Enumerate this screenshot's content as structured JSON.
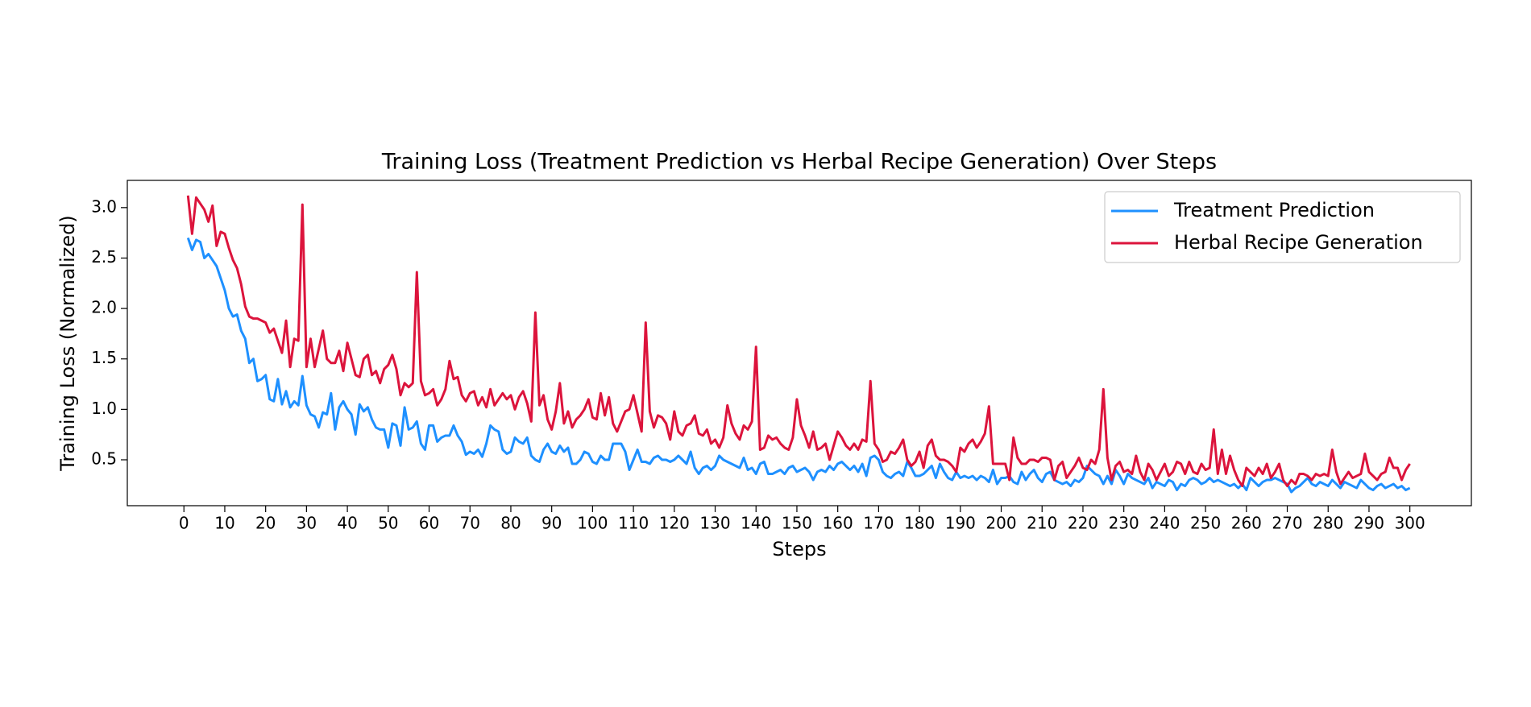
{
  "chart_data": {
    "type": "line",
    "title": "Training Loss (Treatment Prediction vs Herbal Recipe Generation) Over Steps",
    "x_label": "Steps",
    "y_label": "Training Loss (Normalized)",
    "x": [
      1,
      2,
      3,
      4,
      5,
      6,
      7,
      8,
      9,
      10,
      11,
      12,
      13,
      14,
      15,
      16,
      17,
      18,
      19,
      20,
      21,
      22,
      23,
      24,
      25,
      26,
      27,
      28,
      29,
      30,
      31,
      32,
      33,
      34,
      35,
      36,
      37,
      38,
      39,
      40,
      41,
      42,
      43,
      44,
      45,
      46,
      47,
      48,
      49,
      50,
      51,
      52,
      53,
      54,
      55,
      56,
      57,
      58,
      59,
      60,
      61,
      62,
      63,
      64,
      65,
      66,
      67,
      68,
      69,
      70,
      71,
      72,
      73,
      74,
      75,
      76,
      77,
      78,
      79,
      80,
      81,
      82,
      83,
      84,
      85,
      86,
      87,
      88,
      89,
      90,
      91,
      92,
      93,
      94,
      95,
      96,
      97,
      98,
      99,
      100,
      101,
      102,
      103,
      104,
      105,
      106,
      107,
      108,
      109,
      110,
      111,
      112,
      113,
      114,
      115,
      116,
      117,
      118,
      119,
      120,
      121,
      122,
      123,
      124,
      125,
      126,
      127,
      128,
      129,
      130,
      131,
      132,
      133,
      134,
      135,
      136,
      137,
      138,
      139,
      140,
      141,
      142,
      143,
      144,
      145,
      146,
      147,
      148,
      149,
      150,
      151,
      152,
      153,
      154,
      155,
      156,
      157,
      158,
      159,
      160,
      161,
      162,
      163,
      164,
      165,
      166,
      167,
      168,
      169,
      170,
      171,
      172,
      173,
      174,
      175,
      176,
      177,
      178,
      179,
      180,
      181,
      182,
      183,
      184,
      185,
      186,
      187,
      188,
      189,
      190,
      191,
      192,
      193,
      194,
      195,
      196,
      197,
      198,
      199,
      200,
      201,
      202,
      203,
      204,
      205,
      206,
      207,
      208,
      209,
      210,
      211,
      212,
      213,
      214,
      215,
      216,
      217,
      218,
      219,
      220,
      221,
      222,
      223,
      224,
      225,
      226,
      227,
      228,
      229,
      230,
      231,
      232,
      233,
      234,
      235,
      236,
      237,
      238,
      239,
      240,
      241,
      242,
      243,
      244,
      245,
      246,
      247,
      248,
      249,
      250,
      251,
      252,
      253,
      254,
      255,
      256,
      257,
      258,
      259,
      260,
      261,
      262,
      263,
      264,
      265,
      266,
      267,
      268,
      269,
      270,
      271,
      272,
      273,
      274,
      275,
      276,
      277,
      278,
      279,
      280,
      281,
      282,
      283,
      284,
      285,
      286,
      287,
      288,
      289,
      290,
      291,
      292,
      293,
      294,
      295,
      296,
      297,
      298,
      299,
      300
    ],
    "series": [
      {
        "name": "Treatment Prediction",
        "color": "#1e90ff",
        "values": [
          2.7,
          2.58,
          2.68,
          2.66,
          2.5,
          2.54,
          2.48,
          2.42,
          2.3,
          2.18,
          2.0,
          1.92,
          1.94,
          1.78,
          1.7,
          1.46,
          1.5,
          1.28,
          1.3,
          1.34,
          1.1,
          1.08,
          1.3,
          1.05,
          1.18,
          1.02,
          1.08,
          1.04,
          1.33,
          1.04,
          0.95,
          0.93,
          0.82,
          0.97,
          0.95,
          1.16,
          0.8,
          1.02,
          1.08,
          1.0,
          0.95,
          0.75,
          1.05,
          0.98,
          1.02,
          0.9,
          0.82,
          0.8,
          0.8,
          0.62,
          0.86,
          0.84,
          0.64,
          1.02,
          0.8,
          0.82,
          0.88,
          0.66,
          0.6,
          0.84,
          0.84,
          0.68,
          0.72,
          0.74,
          0.74,
          0.84,
          0.74,
          0.68,
          0.55,
          0.58,
          0.56,
          0.6,
          0.53,
          0.66,
          0.84,
          0.8,
          0.78,
          0.6,
          0.56,
          0.58,
          0.72,
          0.68,
          0.66,
          0.72,
          0.54,
          0.5,
          0.48,
          0.6,
          0.66,
          0.58,
          0.56,
          0.64,
          0.58,
          0.62,
          0.46,
          0.46,
          0.5,
          0.58,
          0.56,
          0.48,
          0.46,
          0.54,
          0.5,
          0.5,
          0.66,
          0.66,
          0.66,
          0.58,
          0.4,
          0.5,
          0.6,
          0.48,
          0.48,
          0.46,
          0.52,
          0.54,
          0.5,
          0.5,
          0.48,
          0.5,
          0.54,
          0.5,
          0.46,
          0.58,
          0.42,
          0.36,
          0.42,
          0.44,
          0.4,
          0.44,
          0.54,
          0.5,
          0.48,
          0.46,
          0.44,
          0.42,
          0.52,
          0.4,
          0.42,
          0.36,
          0.46,
          0.48,
          0.36,
          0.36,
          0.38,
          0.4,
          0.36,
          0.42,
          0.44,
          0.38,
          0.4,
          0.42,
          0.38,
          0.3,
          0.38,
          0.4,
          0.38,
          0.44,
          0.4,
          0.46,
          0.48,
          0.44,
          0.4,
          0.44,
          0.38,
          0.46,
          0.34,
          0.52,
          0.54,
          0.5,
          0.38,
          0.34,
          0.32,
          0.36,
          0.38,
          0.34,
          0.48,
          0.42,
          0.34,
          0.34,
          0.36,
          0.4,
          0.44,
          0.32,
          0.46,
          0.38,
          0.32,
          0.3,
          0.38,
          0.32,
          0.34,
          0.32,
          0.34,
          0.3,
          0.34,
          0.32,
          0.28,
          0.4,
          0.26,
          0.32,
          0.32,
          0.34,
          0.28,
          0.26,
          0.38,
          0.3,
          0.36,
          0.4,
          0.32,
          0.28,
          0.36,
          0.38,
          0.3,
          0.28,
          0.26,
          0.28,
          0.24,
          0.3,
          0.28,
          0.32,
          0.44,
          0.4,
          0.36,
          0.34,
          0.26,
          0.34,
          0.26,
          0.4,
          0.34,
          0.26,
          0.36,
          0.32,
          0.3,
          0.28,
          0.26,
          0.32,
          0.22,
          0.28,
          0.26,
          0.24,
          0.3,
          0.28,
          0.2,
          0.26,
          0.24,
          0.3,
          0.32,
          0.3,
          0.26,
          0.28,
          0.32,
          0.28,
          0.3,
          0.28,
          0.26,
          0.24,
          0.26,
          0.22,
          0.26,
          0.2,
          0.32,
          0.28,
          0.24,
          0.28,
          0.3,
          0.3,
          0.32,
          0.3,
          0.28,
          0.26,
          0.18,
          0.22,
          0.24,
          0.28,
          0.32,
          0.26,
          0.24,
          0.28,
          0.26,
          0.24,
          0.3,
          0.26,
          0.22,
          0.28,
          0.26,
          0.24,
          0.22,
          0.3,
          0.26,
          0.22,
          0.2,
          0.24,
          0.26,
          0.22,
          0.24,
          0.26,
          0.22,
          0.24,
          0.2,
          0.22
        ]
      },
      {
        "name": "Herbal Recipe Generation",
        "color": "#dc143c",
        "values": [
          3.12,
          2.74,
          3.1,
          3.04,
          2.98,
          2.86,
          3.02,
          2.62,
          2.76,
          2.74,
          2.6,
          2.48,
          2.4,
          2.24,
          2.02,
          1.92,
          1.9,
          1.9,
          1.88,
          1.86,
          1.76,
          1.8,
          1.68,
          1.56,
          1.88,
          1.42,
          1.7,
          1.68,
          3.03,
          1.42,
          1.7,
          1.42,
          1.6,
          1.78,
          1.5,
          1.46,
          1.46,
          1.58,
          1.38,
          1.66,
          1.5,
          1.34,
          1.32,
          1.5,
          1.54,
          1.34,
          1.38,
          1.26,
          1.4,
          1.44,
          1.54,
          1.4,
          1.14,
          1.26,
          1.22,
          1.26,
          2.36,
          1.28,
          1.14,
          1.16,
          1.2,
          1.04,
          1.1,
          1.2,
          1.48,
          1.3,
          1.32,
          1.14,
          1.08,
          1.16,
          1.18,
          1.04,
          1.12,
          1.02,
          1.2,
          1.04,
          1.1,
          1.16,
          1.1,
          1.14,
          1.0,
          1.12,
          1.18,
          1.06,
          0.88,
          1.96,
          1.04,
          1.14,
          0.9,
          0.8,
          0.98,
          1.26,
          0.86,
          0.98,
          0.82,
          0.9,
          0.94,
          1.0,
          1.1,
          0.92,
          0.9,
          1.16,
          0.94,
          1.12,
          0.86,
          0.78,
          0.88,
          0.98,
          1.0,
          1.14,
          0.96,
          0.78,
          1.86,
          0.98,
          0.82,
          0.94,
          0.92,
          0.86,
          0.7,
          0.98,
          0.78,
          0.74,
          0.84,
          0.86,
          0.94,
          0.76,
          0.74,
          0.8,
          0.66,
          0.7,
          0.62,
          0.72,
          1.04,
          0.86,
          0.76,
          0.7,
          0.84,
          0.8,
          0.88,
          1.62,
          0.6,
          0.62,
          0.74,
          0.7,
          0.72,
          0.66,
          0.62,
          0.6,
          0.72,
          1.1,
          0.84,
          0.74,
          0.62,
          0.78,
          0.6,
          0.62,
          0.66,
          0.5,
          0.64,
          0.78,
          0.72,
          0.64,
          0.6,
          0.66,
          0.6,
          0.7,
          0.68,
          1.28,
          0.66,
          0.6,
          0.48,
          0.5,
          0.58,
          0.56,
          0.62,
          0.7,
          0.5,
          0.44,
          0.48,
          0.58,
          0.42,
          0.64,
          0.7,
          0.54,
          0.5,
          0.5,
          0.48,
          0.44,
          0.38,
          0.62,
          0.58,
          0.66,
          0.7,
          0.62,
          0.68,
          0.76,
          1.03,
          0.46,
          0.46,
          0.46,
          0.46,
          0.3,
          0.72,
          0.52,
          0.46,
          0.46,
          0.5,
          0.5,
          0.48,
          0.52,
          0.52,
          0.5,
          0.3,
          0.44,
          0.48,
          0.32,
          0.38,
          0.44,
          0.52,
          0.42,
          0.4,
          0.5,
          0.46,
          0.6,
          1.2,
          0.52,
          0.3,
          0.44,
          0.48,
          0.38,
          0.4,
          0.36,
          0.54,
          0.38,
          0.3,
          0.46,
          0.4,
          0.3,
          0.38,
          0.46,
          0.34,
          0.38,
          0.48,
          0.46,
          0.36,
          0.48,
          0.38,
          0.36,
          0.46,
          0.4,
          0.42,
          0.8,
          0.36,
          0.6,
          0.36,
          0.54,
          0.4,
          0.3,
          0.24,
          0.42,
          0.38,
          0.34,
          0.42,
          0.36,
          0.46,
          0.32,
          0.38,
          0.46,
          0.3,
          0.24,
          0.3,
          0.26,
          0.36,
          0.36,
          0.34,
          0.3,
          0.36,
          0.34,
          0.36,
          0.34,
          0.6,
          0.38,
          0.26,
          0.32,
          0.38,
          0.32,
          0.34,
          0.36,
          0.56,
          0.38,
          0.34,
          0.3,
          0.36,
          0.38,
          0.52,
          0.42,
          0.42,
          0.3,
          0.4,
          0.46
        ]
      }
    ],
    "xlim": [
      -13.85,
      315.05
    ],
    "ylim": [
      0.045,
      3.27
    ],
    "xticks": [
      0,
      10,
      20,
      30,
      40,
      50,
      60,
      70,
      80,
      90,
      100,
      110,
      120,
      130,
      140,
      150,
      160,
      170,
      180,
      190,
      200,
      210,
      220,
      230,
      240,
      250,
      260,
      270,
      280,
      290,
      300
    ],
    "yticks": [
      0.5,
      {
        "value": 1,
        "label": "1.0"
      },
      1.5,
      {
        "value": 2,
        "label": "2.0"
      },
      2.5,
      {
        "value": 3,
        "label": "3.0"
      }
    ],
    "legend": "upper right",
    "grid": false
  }
}
